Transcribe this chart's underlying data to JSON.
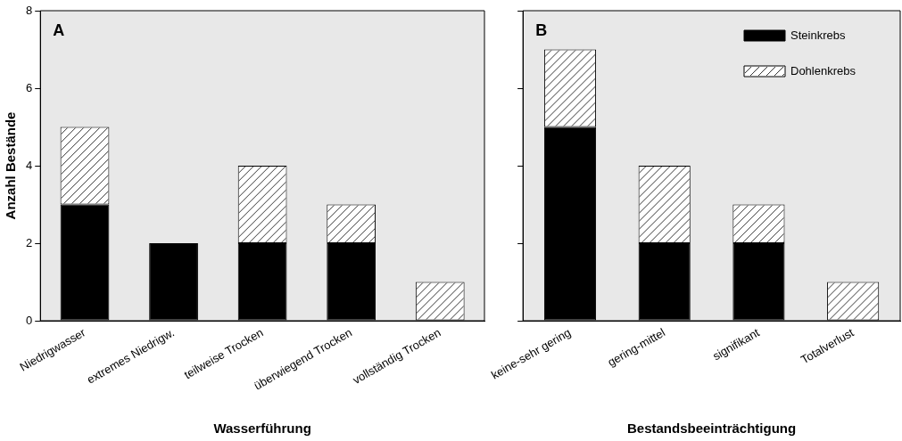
{
  "chart_data": [
    {
      "type": "bar",
      "stacked": true,
      "categories": [
        "Niedrigwasser",
        "extremes Niedrigw.",
        "teilweise Trocken",
        "überwiegend Trocken",
        "vollständig Trocken"
      ],
      "xlabel": "Wasserführung",
      "ylabel": "Anzahl Bestände",
      "ylim": [
        0,
        8
      ],
      "yticks": [
        0,
        2,
        4,
        6,
        8
      ],
      "annotations": [
        "A"
      ],
      "series": [
        {
          "color": "#000000",
          "values": [
            3,
            2,
            2,
            2,
            0
          ]
        },
        {
          "color": "#ffffff",
          "values": [
            2,
            0,
            2,
            1,
            1
          ]
        }
      ]
    },
    {
      "type": "bar",
      "stacked": true,
      "categories": [
        "keine-sehr gering",
        "gering-mittel",
        "signifikant",
        "Totalverlust"
      ],
      "xlabel": "Bestandsbeeinträchtigung",
      "ylim": [
        0,
        8
      ],
      "yticks": [
        0,
        2,
        4,
        6,
        8
      ],
      "tick_labels": "x",
      "legend": "top right",
      "annotations": [
        "B"
      ],
      "series": [
        {
          "name": "Steinkrebs",
          "color": "#000000",
          "values": [
            5,
            2,
            2,
            0
          ]
        },
        {
          "name": "Dohlenkrebs",
          "color": "#ffffff",
          "values": [
            2,
            2,
            1,
            1
          ]
        }
      ]
    }
  ]
}
